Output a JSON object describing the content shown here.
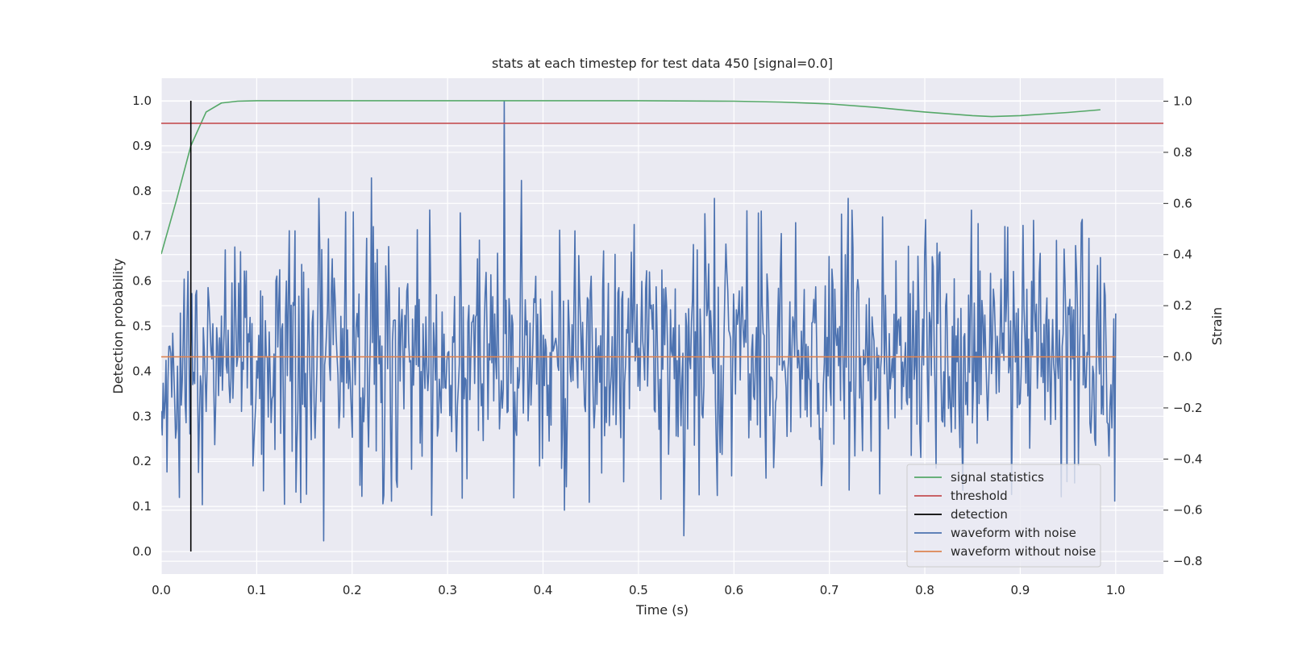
{
  "chart_data": {
    "type": "line",
    "title": "stats at each timestep for test data 450 [signal=0.0]",
    "xlabel": "Time (s)",
    "ylabel_left": "Detection probability",
    "ylabel_right": "Strain",
    "xlim": [
      0.0,
      1.05
    ],
    "ylim_left": [
      -0.05,
      1.05
    ],
    "ylim_right": [
      -0.85,
      1.09
    ],
    "x_ticks": [
      "0.0",
      "0.1",
      "0.2",
      "0.3",
      "0.4",
      "0.5",
      "0.6",
      "0.7",
      "0.8",
      "0.9",
      "1.0"
    ],
    "y_left_ticks": [
      "0.0",
      "0.1",
      "0.2",
      "0.3",
      "0.4",
      "0.5",
      "0.6",
      "0.7",
      "0.8",
      "0.9",
      "1.0"
    ],
    "y_right_ticks": [
      "−0.8",
      "−0.6",
      "−0.4",
      "−0.2",
      "0.0",
      "0.2",
      "0.4",
      "0.6",
      "0.8",
      "1.0"
    ],
    "grid": true,
    "legend_position": "lower-right",
    "colors": {
      "background": "#eaeaf2",
      "signal_statistics": "#55a868",
      "threshold": "#c44e52",
      "detection": "#000000",
      "waveform_with_noise": "#4c72b0",
      "waveform_without_noise": "#dd8452"
    },
    "series": [
      {
        "name": "signal statistics",
        "axis": "left",
        "x": [
          0.0,
          0.016,
          0.031,
          0.047,
          0.063,
          0.08,
          0.1,
          0.2,
          0.3,
          0.4,
          0.5,
          0.6,
          0.65,
          0.7,
          0.75,
          0.8,
          0.85,
          0.87,
          0.9,
          0.95,
          0.984
        ],
        "y": [
          0.66,
          0.78,
          0.9,
          0.975,
          0.995,
          0.999,
          1.0,
          1.0,
          1.0,
          1.0,
          1.0,
          0.999,
          0.997,
          0.993,
          0.985,
          0.975,
          0.967,
          0.965,
          0.967,
          0.974,
          0.98
        ]
      },
      {
        "name": "threshold",
        "axis": "left",
        "x": [
          0.0,
          1.05
        ],
        "y": [
          0.95,
          0.95
        ]
      },
      {
        "name": "detection",
        "axis": "left",
        "x": [
          0.031,
          0.031
        ],
        "y": [
          0.0,
          1.0
        ]
      },
      {
        "name": "waveform with noise",
        "axis": "right",
        "generated": "noise",
        "x_range": [
          0.0,
          1.0
        ],
        "n_points": 1000,
        "mean": 0.0,
        "std": 0.26,
        "seed": 450,
        "peaks": [
          {
            "x": 0.359,
            "y": 1.0
          },
          {
            "x": 0.22,
            "y": 0.7
          },
          {
            "x": 0.377,
            "y": 0.69
          },
          {
            "x": 0.165,
            "y": 0.62
          },
          {
            "x": 0.58,
            "y": 0.62
          },
          {
            "x": 0.72,
            "y": 0.62
          },
          {
            "x": 0.17,
            "y": -0.72
          },
          {
            "x": 0.548,
            "y": -0.7
          },
          {
            "x": 0.283,
            "y": -0.62
          },
          {
            "x": 0.422,
            "y": -0.6
          }
        ]
      },
      {
        "name": "waveform without noise",
        "axis": "right",
        "x": [
          0.0,
          1.0
        ],
        "y": [
          0.0,
          0.0
        ]
      }
    ]
  }
}
